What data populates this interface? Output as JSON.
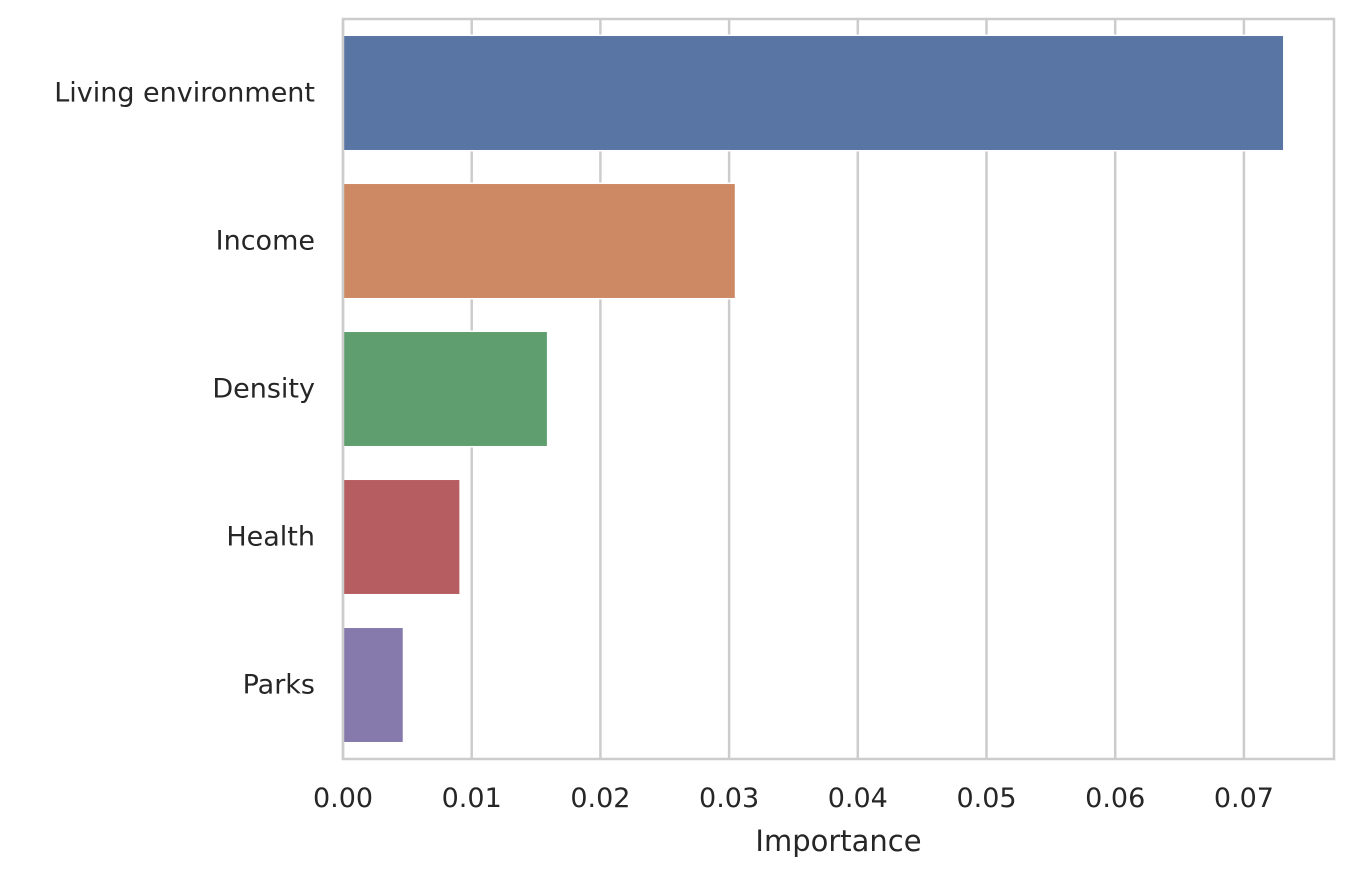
{
  "chart_data": {
    "type": "bar",
    "orientation": "horizontal",
    "categories": [
      "Living environment",
      "Income",
      "Density",
      "Health",
      "Parks"
    ],
    "values": [
      0.0731,
      0.0305,
      0.0159,
      0.0091,
      0.0047
    ],
    "colors": [
      "#5875a4",
      "#cc8963",
      "#5f9e6e",
      "#b55d60",
      "#857aab"
    ],
    "title": "",
    "xlabel": "Importance",
    "ylabel": "",
    "xlim": [
      0,
      0.077
    ],
    "xticks": [
      0.0,
      0.01,
      0.02,
      0.03,
      0.04,
      0.05,
      0.06,
      0.07
    ],
    "xtick_labels": [
      "0.00",
      "0.01",
      "0.02",
      "0.03",
      "0.04",
      "0.05",
      "0.06",
      "0.07"
    ],
    "grid": "vertical",
    "legend": "none",
    "grid_color": "#cccccc",
    "text_color": "#262626"
  }
}
